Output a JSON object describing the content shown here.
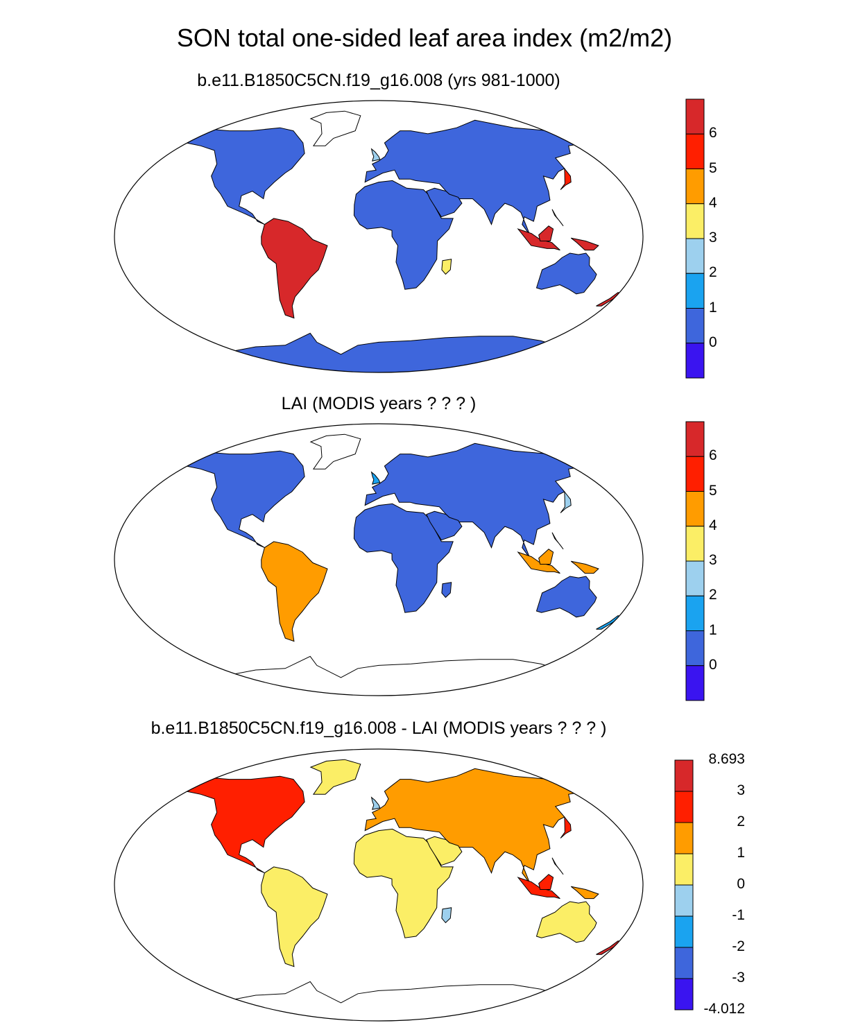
{
  "figure": {
    "title": "SON total one-sided leaf area index (m2/m2)"
  },
  "panels": [
    {
      "title": "b.e11.B1850C5CN.f19_g16.008 (yrs 981-1000)",
      "colorbar": {
        "colors": [
          "#3a14f0",
          "#3e66dc",
          "#1aa3f0",
          "#9dd0ee",
          "#fbee66",
          "#ff9c00",
          "#ff1f00",
          "#d7282a"
        ],
        "labels": [
          "0",
          "1",
          "2",
          "3",
          "4",
          "5",
          "6"
        ]
      }
    },
    {
      "title": "LAI (MODIS years ? ? ? )",
      "colorbar": {
        "colors": [
          "#3a14f0",
          "#3e66dc",
          "#1aa3f0",
          "#9dd0ee",
          "#fbee66",
          "#ff9c00",
          "#ff1f00",
          "#d7282a"
        ],
        "labels": [
          "0",
          "1",
          "2",
          "3",
          "4",
          "5",
          "6"
        ]
      }
    },
    {
      "title": "b.e11.B1850C5CN.f19_g16.008 - LAI (MODIS years ? ? ? )",
      "colorbar": {
        "colors": [
          "#3a14f0",
          "#3e66dc",
          "#1aa3f0",
          "#9dd0ee",
          "#fbee66",
          "#ff9c00",
          "#ff1f00",
          "#d7282a"
        ],
        "labels": [
          "8.693",
          "3",
          "2",
          "1",
          "0",
          "-1",
          "-2",
          "-3",
          "-4.012"
        ]
      }
    }
  ]
}
